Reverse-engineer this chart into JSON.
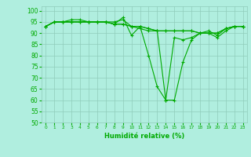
{
  "xlabel": "Humidité relative (%)",
  "xlim": [
    -0.5,
    23.5
  ],
  "ylim": [
    50,
    102
  ],
  "yticks": [
    50,
    55,
    60,
    65,
    70,
    75,
    80,
    85,
    90,
    95,
    100
  ],
  "xticks": [
    0,
    1,
    2,
    3,
    4,
    5,
    6,
    7,
    8,
    9,
    10,
    11,
    12,
    13,
    14,
    15,
    16,
    17,
    18,
    19,
    20,
    21,
    22,
    23
  ],
  "bg_color": "#b0eedf",
  "grid_color": "#90ccbb",
  "line_color": "#00aa00",
  "marker": "+",
  "series": [
    [
      93,
      95,
      95,
      95,
      95,
      95,
      95,
      95,
      94,
      97,
      89,
      93,
      80,
      66,
      60,
      60,
      77,
      87,
      90,
      91,
      89,
      92,
      93,
      93
    ],
    [
      93,
      95,
      95,
      96,
      96,
      95,
      95,
      95,
      95,
      96,
      93,
      92,
      91,
      91,
      60,
      88,
      87,
      88,
      90,
      90,
      88,
      91,
      93,
      93
    ],
    [
      93,
      95,
      95,
      95,
      95,
      95,
      95,
      95,
      94,
      94,
      93,
      93,
      92,
      91,
      91,
      91,
      91,
      91,
      90,
      90,
      90,
      92,
      93,
      93
    ],
    [
      93,
      95,
      95,
      95,
      95,
      95,
      95,
      95,
      94,
      94,
      93,
      93,
      92,
      91,
      91,
      91,
      91,
      91,
      90,
      90,
      90,
      92,
      93,
      93
    ]
  ]
}
